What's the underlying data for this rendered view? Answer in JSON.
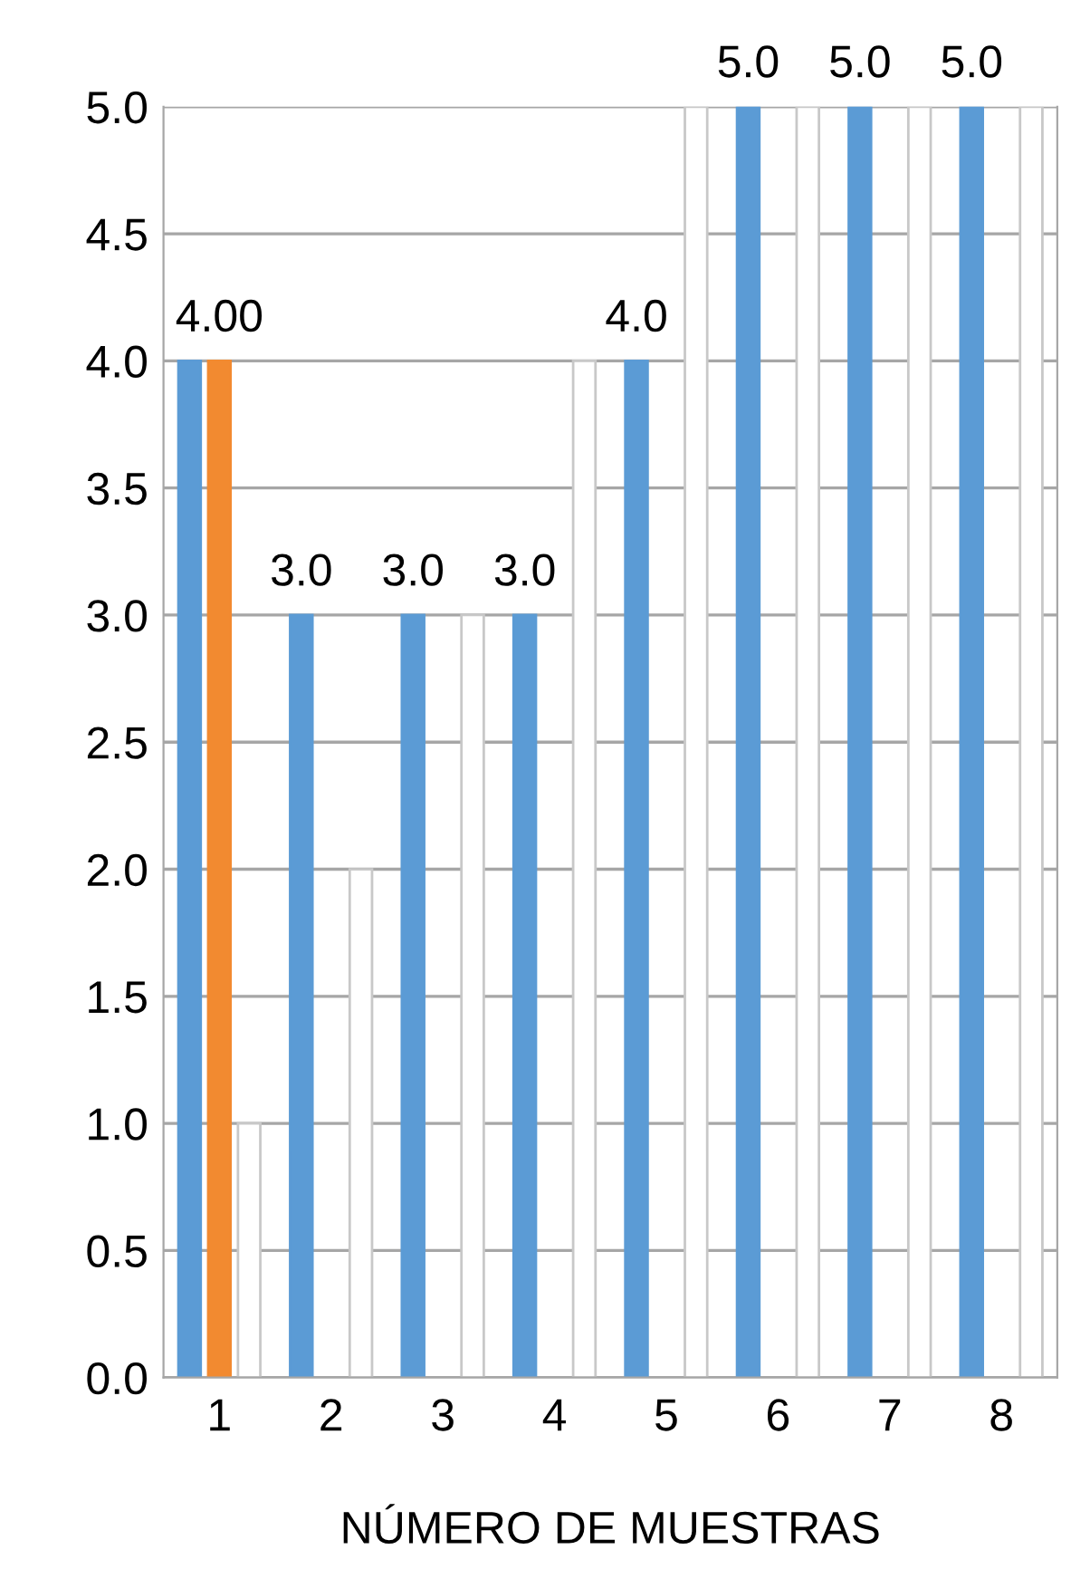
{
  "chart_data": {
    "type": "bar",
    "xlabel": "NÚMERO DE MUESTRAS",
    "categories": [
      "1",
      "2",
      "3",
      "4",
      "5",
      "6",
      "7",
      "8"
    ],
    "series": [
      {
        "color": "#5b9bd5",
        "values": [
          4,
          3,
          3,
          3,
          4,
          5,
          5,
          5
        ],
        "value_labels": [
          null,
          "3.0",
          "3.0",
          "3.0",
          "4.0",
          "5.0",
          "5.0",
          "5.0"
        ]
      },
      {
        "color": "#f28a30",
        "values": [
          4,
          null,
          null,
          null,
          null,
          null,
          null,
          null
        ],
        "value_labels": [
          "4.00",
          null,
          null,
          null,
          null,
          null,
          null,
          null
        ]
      },
      {
        "color": "#ffffff",
        "values": [
          1,
          2,
          3,
          4,
          5,
          5,
          5,
          5
        ]
      }
    ],
    "ylim": [
      0,
      5
    ],
    "yticks": [
      {
        "value": 0,
        "label": "0.0"
      },
      {
        "value": 0.5,
        "label": "0.5"
      },
      {
        "value": 1,
        "label": "1.0"
      },
      {
        "value": 1.5,
        "label": "1.5"
      },
      {
        "value": 2,
        "label": "2.0"
      },
      {
        "value": 2.5,
        "label": "2.5"
      },
      {
        "value": 3,
        "label": "3.0"
      },
      {
        "value": 3.5,
        "label": "3.5"
      },
      {
        "value": 4,
        "label": "4.0"
      },
      {
        "value": 4.5,
        "label": "4.5"
      },
      {
        "value": 5,
        "label": "5.0"
      }
    ],
    "grid": "y",
    "legend": false
  }
}
